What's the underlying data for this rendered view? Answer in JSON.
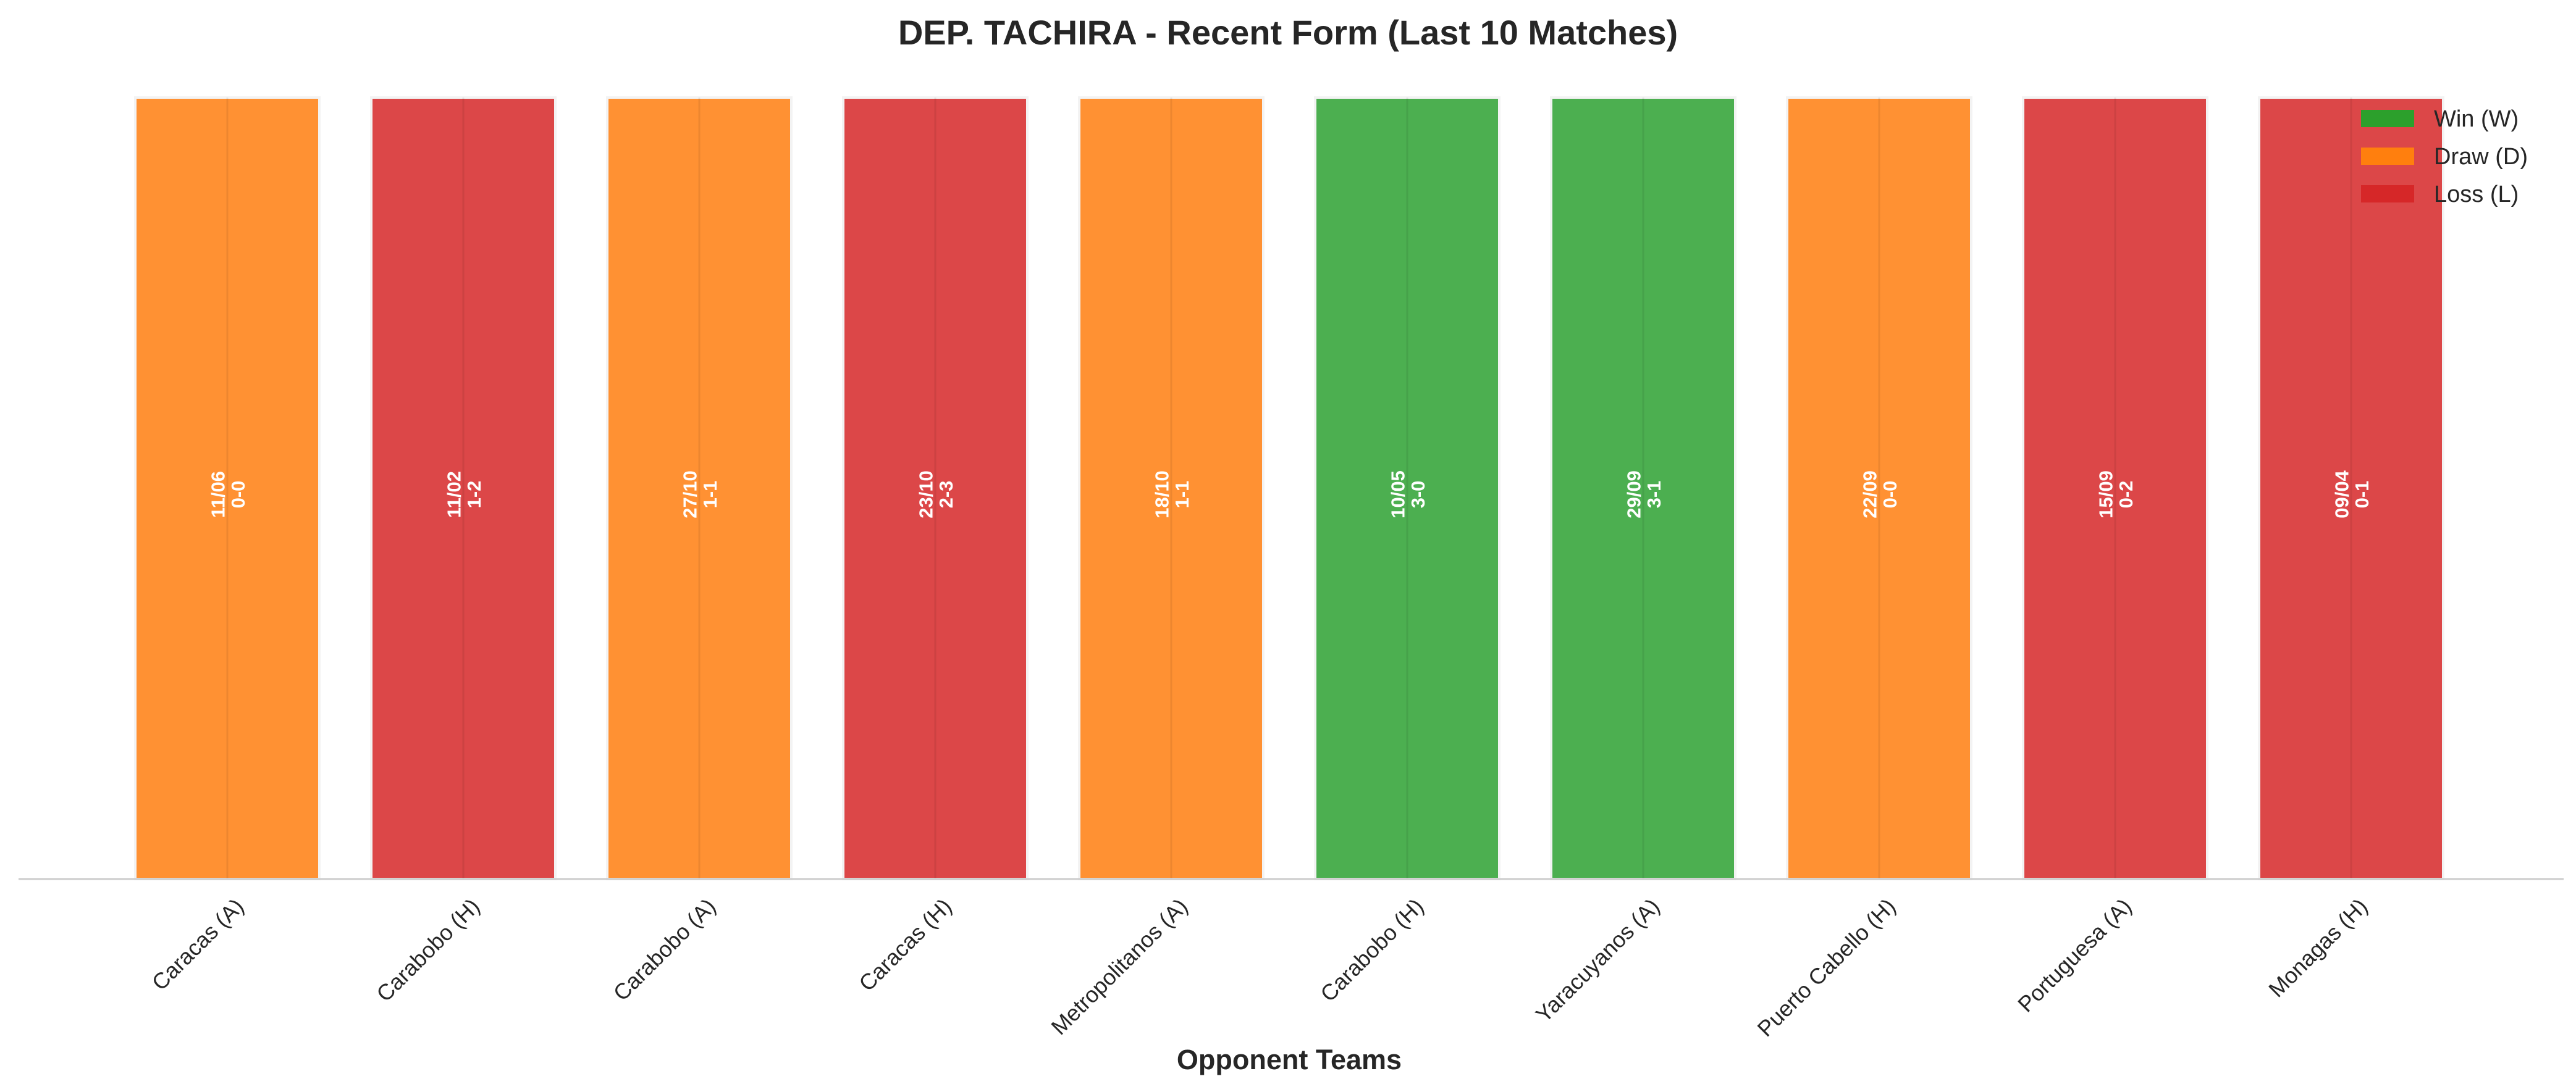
{
  "chart_data": {
    "type": "bar",
    "title": "DEP. TACHIRA - Recent Form (Last 10 Matches)",
    "xlabel": "Opponent Teams",
    "ylabel": "",
    "categories": [
      "Caracas (A)",
      "Carabobo (H)",
      "Carabobo (A)",
      "Caracas (H)",
      "Metropolitanos (A)",
      "Carabobo (H)",
      "Yaracuyanos (A)",
      "Puerto Cabello (H)",
      "Portuguesa (A)",
      "Monagas (H)"
    ],
    "values": [
      1,
      1,
      1,
      1,
      1,
      1,
      1,
      1,
      1,
      1
    ],
    "results": [
      "D",
      "L",
      "D",
      "L",
      "D",
      "W",
      "W",
      "D",
      "L",
      "L"
    ],
    "dates": [
      "11/06",
      "11/02",
      "27/10",
      "23/10",
      "18/10",
      "10/05",
      "29/09",
      "22/09",
      "15/09",
      "09/04"
    ],
    "scores": [
      "0-0",
      "1-2",
      "1-1",
      "2-3",
      "1-1",
      "3-0",
      "3-1",
      "0-0",
      "0-2",
      "0-1"
    ],
    "ylim": [
      0,
      1.05
    ],
    "grid": false,
    "legend_position": "top-right",
    "legend": [
      {
        "key": "W",
        "label": "Win (W)",
        "color": "#2ca02c"
      },
      {
        "key": "D",
        "label": "Draw (D)",
        "color": "#ff7f0e"
      },
      {
        "key": "L",
        "label": "Loss (L)",
        "color": "#d62728"
      }
    ],
    "bar_colors": {
      "W": "#4caf50",
      "D": "#ff9133",
      "L": "#dc4748"
    }
  }
}
